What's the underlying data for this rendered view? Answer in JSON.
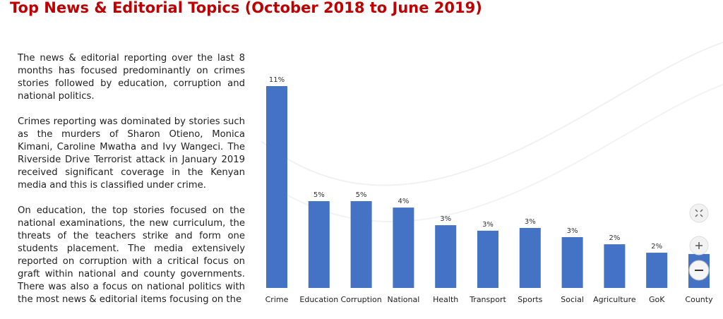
{
  "title": "Top News & Editorial Topics (October 2018 to June 2019)",
  "paragraphs": [
    "The news & editorial reporting over the last 8 months has focused predominantly on crimes stories followed by education, corruption and national politics.",
    "Crimes reporting was dominated by stories such as the murders of Sharon Otieno, Monica Kimani, Caroline Mwatha and Ivy Wangeci. The Riverside Drive Terrorist attack in January 2019 received significant coverage in the Kenyan media and this is classified under crime.",
    "On education, the top stories focused on the national examinations, the new curriculum, the threats of the teachers strike and form one students placement.  The media extensively reported on corruption with a critical focus on graft within national and county governments. There was also a focus on national politics with the most news & editorial items focusing on the"
  ],
  "chart_data": {
    "type": "bar",
    "color": "#4472c4",
    "categories": [
      "Crime",
      "Education",
      "Corruption",
      "National",
      "Health",
      "Transport",
      "Sports",
      "Social",
      "Agriculture",
      "GoK",
      "County"
    ],
    "values": [
      11,
      4.73,
      4.73,
      4.38,
      3.42,
      3.12,
      3.27,
      2.77,
      2.38,
      1.92,
      1.85
    ],
    "value_labels": [
      "11%",
      "5%",
      "5%",
      "4%",
      "3%",
      "3%",
      "3%",
      "3%",
      "2%",
      "2%",
      null
    ]
  }
}
